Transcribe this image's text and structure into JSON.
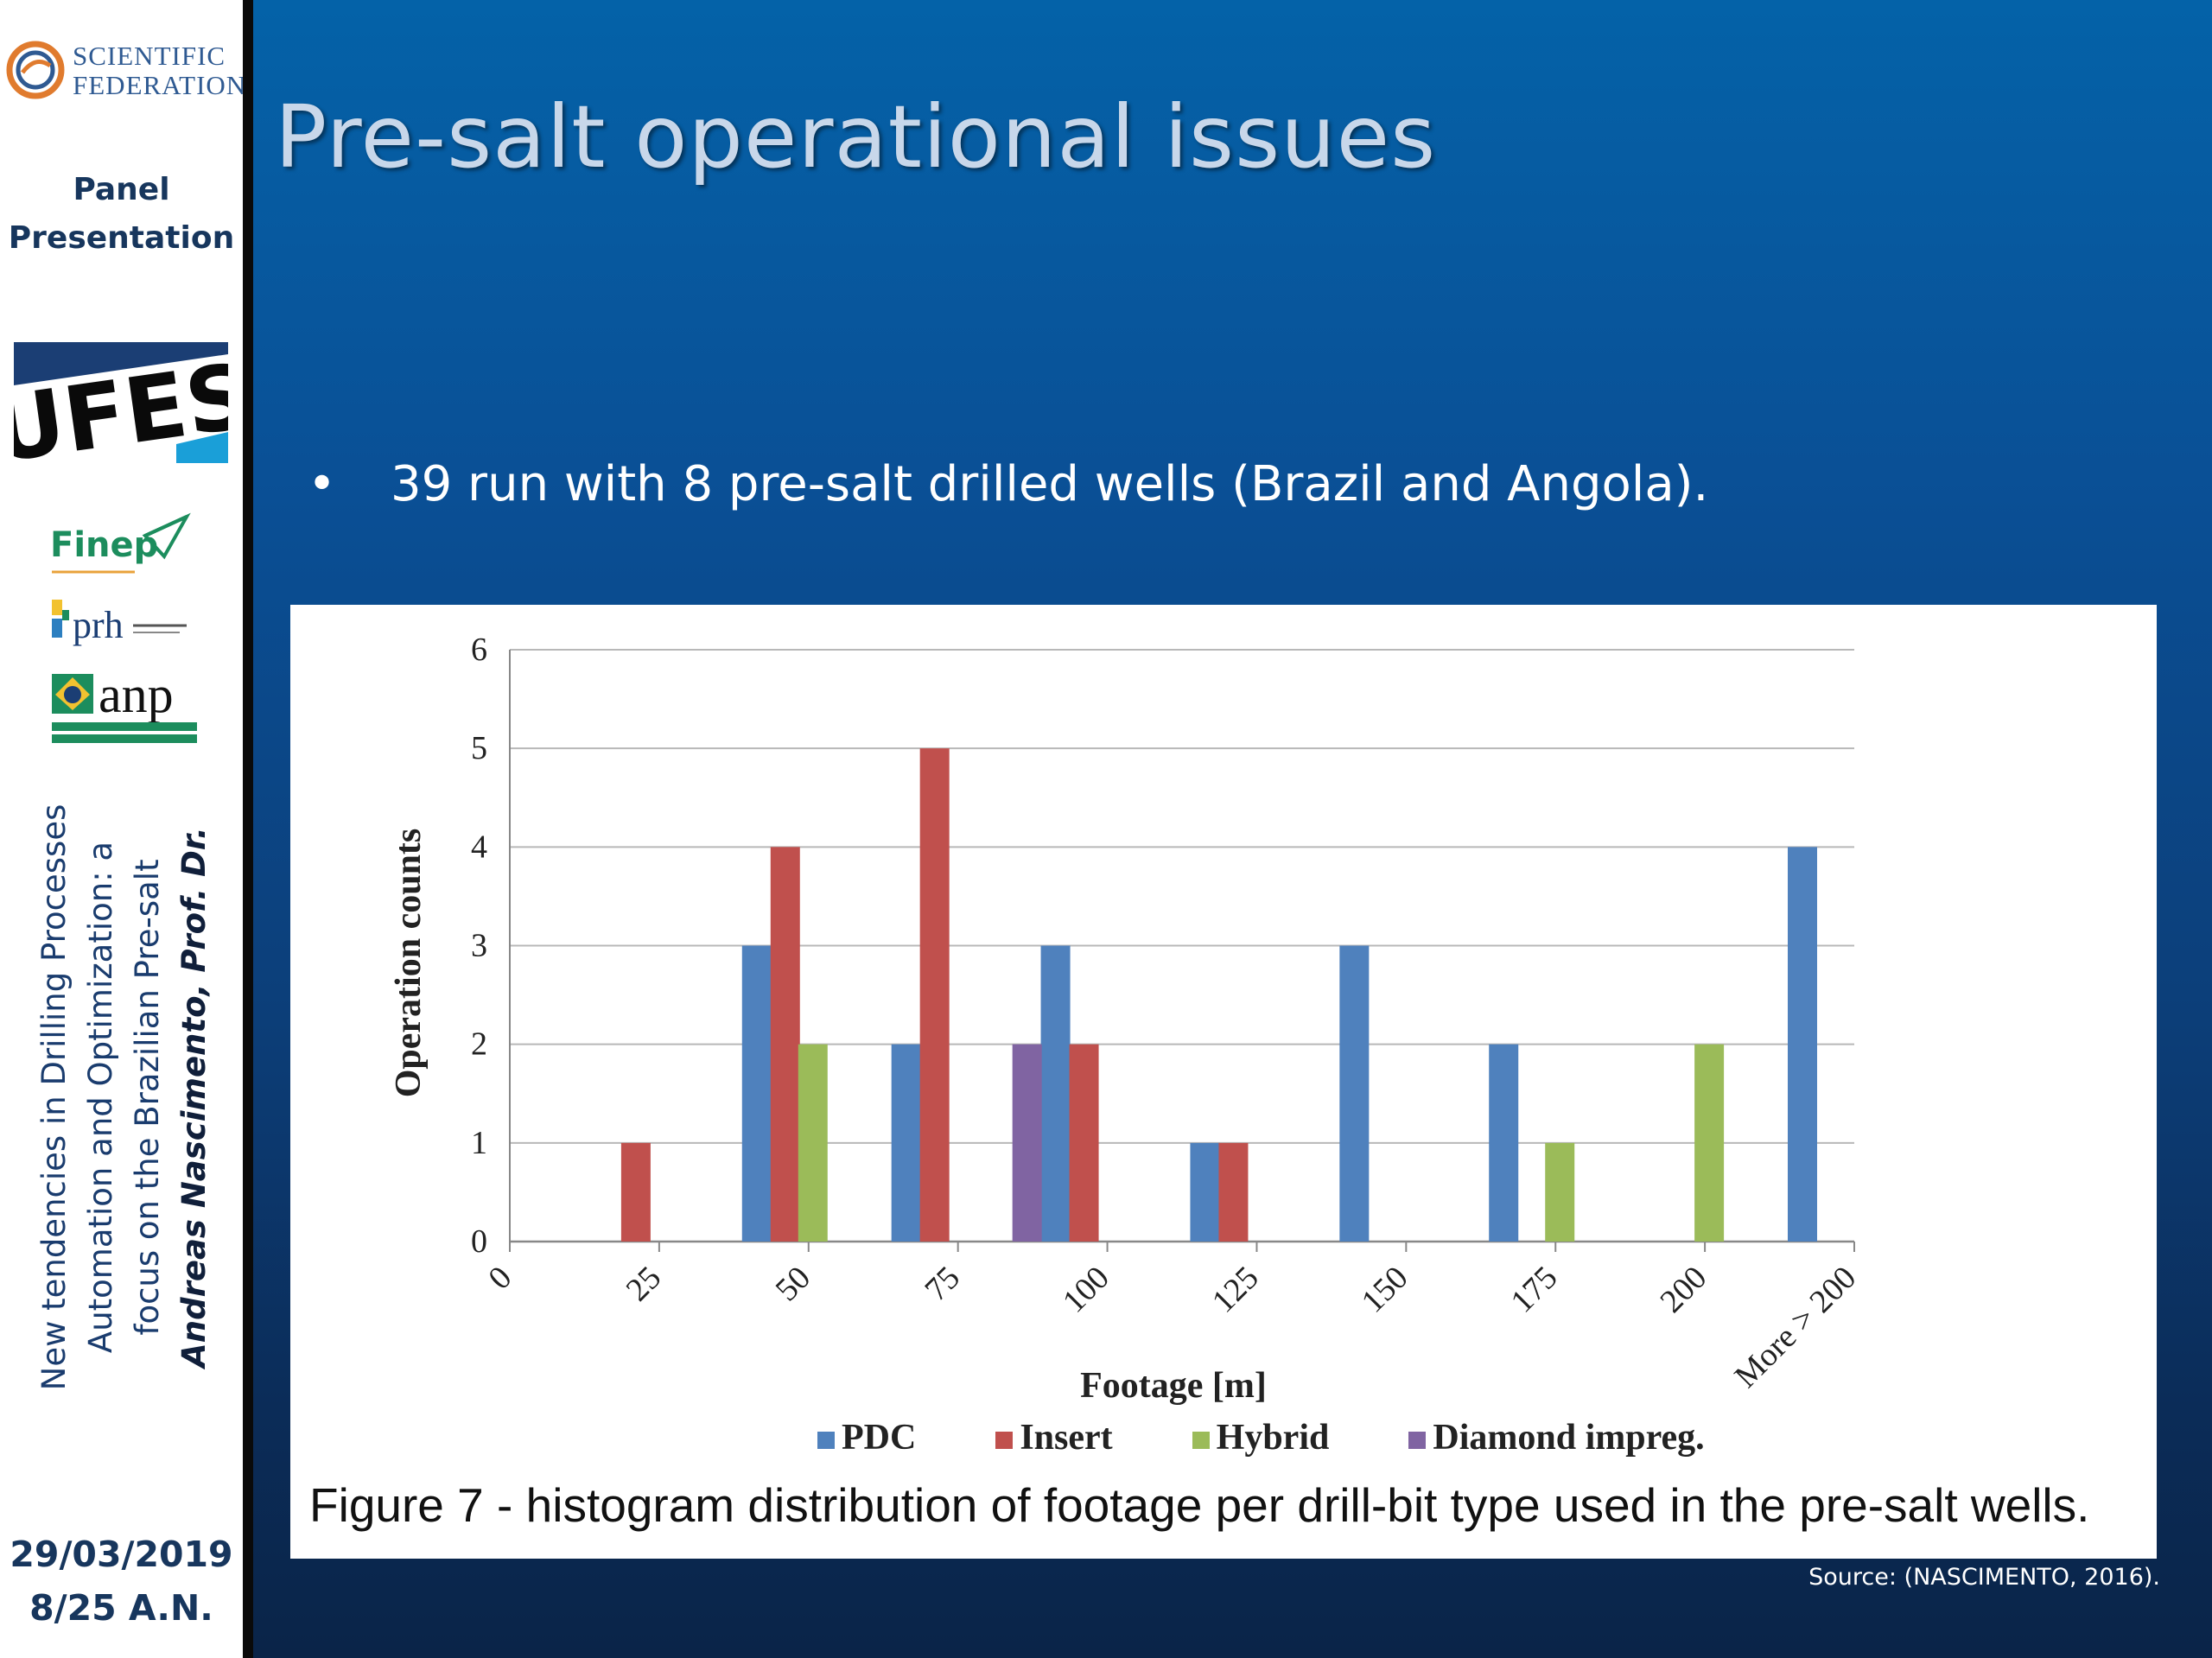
{
  "sidebar": {
    "logo_line1": "SCIENTIFIC",
    "logo_line2": "FEDERATION",
    "panel_line1": "Panel",
    "panel_line2": "Presentation",
    "ufes_logo": "UFES",
    "finep_logo": "Finep",
    "prh_logo": "prh",
    "anp_logo": "anp",
    "vertical_line1": "New tendencies in Drilling Processes",
    "vertical_line2": "Automation and Optimization: a",
    "vertical_line3": "focus on the Brazilian Pre-salt",
    "vertical_line4": "Andreas Nascimento, Prof. Dr.",
    "date": "29/03/2019",
    "page_info": "8/25  A.N."
  },
  "slide": {
    "title": "Pre-salt operational issues",
    "bullet_marker": "•",
    "bullet_text": "39 run with 8 pre-salt drilled wells (Brazil and Angola).",
    "caption": "Figure 7 - histogram distribution of footage per drill-bit type used in the pre-salt wells.",
    "source": "Source: (NASCIMENTO, 2016)."
  },
  "chart_data": {
    "type": "bar",
    "title": "",
    "xlabel": "Footage [m]",
    "ylabel": "Operation counts",
    "ylim": [
      0,
      6
    ],
    "yticks": [
      "0",
      "1",
      "2",
      "3",
      "4",
      "5",
      "6"
    ],
    "categories": [
      "0",
      "25",
      "50",
      "75",
      "100",
      "125",
      "150",
      "175",
      "200",
      "More > 200"
    ],
    "grid": true,
    "legend_position": "bottom",
    "series": [
      {
        "name": "PDC",
        "color": "#4f81bd",
        "values": [
          0,
          0,
          3,
          2,
          3,
          1,
          3,
          2,
          0,
          4
        ]
      },
      {
        "name": "Insert",
        "color": "#c0504d",
        "values": [
          0,
          1,
          4,
          5,
          2,
          1,
          0,
          0,
          0,
          0
        ]
      },
      {
        "name": "Hybrid",
        "color": "#9bbb59",
        "values": [
          0,
          0,
          2,
          0,
          0,
          0,
          0,
          1,
          2,
          0
        ]
      },
      {
        "name": "Diamond impreg.",
        "color": "#8064a2",
        "values": [
          0,
          0,
          0,
          2,
          0,
          0,
          0,
          0,
          0,
          0
        ]
      }
    ]
  }
}
